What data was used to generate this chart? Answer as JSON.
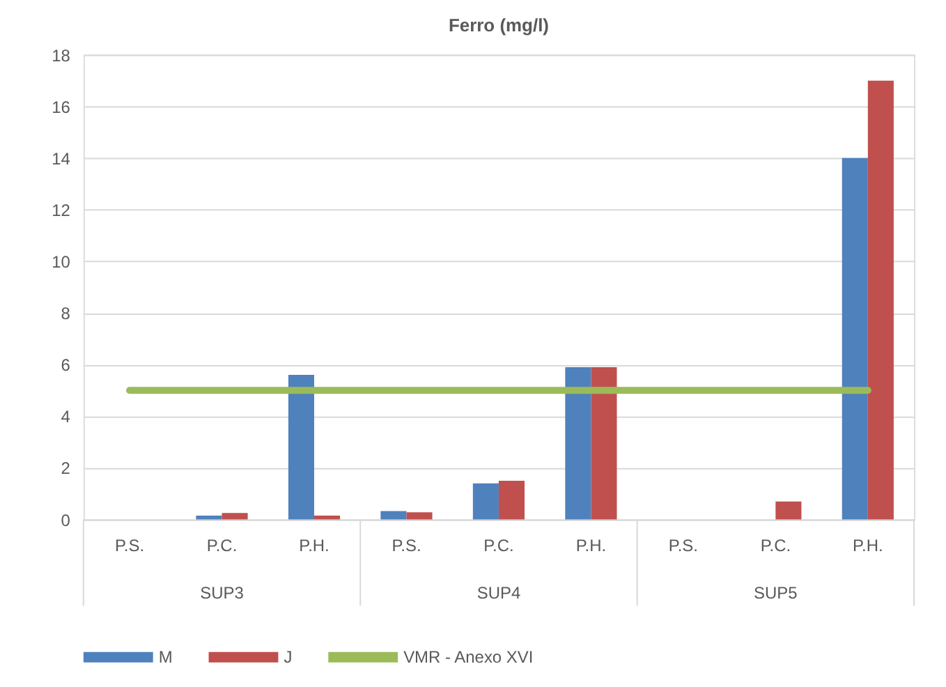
{
  "chart_data": {
    "type": "bar",
    "title": "Ferro (mg/l)",
    "categories": [
      "P.S.",
      "P.C.",
      "P.H.",
      "P.S.",
      "P.C.",
      "P.H.",
      "P.S.",
      "P.C.",
      "P.H."
    ],
    "annotations": [
      "SUP3",
      "SUP4",
      "SUP5"
    ],
    "series": [
      {
        "name": "M",
        "color": "#4f81bd",
        "values": [
          null,
          0.15,
          5.6,
          0.33,
          1.4,
          5.9,
          null,
          null,
          14
        ]
      },
      {
        "name": "J",
        "color": "#c0504d",
        "values": [
          null,
          0.25,
          0.15,
          0.28,
          1.5,
          5.9,
          null,
          0.7,
          17
        ]
      },
      {
        "name": "VMR - Anexo XVI",
        "type": "line",
        "color": "#9bbb59",
        "values": [
          5,
          5,
          5,
          5,
          5,
          5,
          5,
          5,
          5
        ]
      }
    ],
    "ylim": [
      0,
      18
    ],
    "yticks": [
      0,
      2,
      4,
      6,
      8,
      10,
      12,
      14,
      16,
      18
    ],
    "grid": "y",
    "legend": "bottom"
  }
}
